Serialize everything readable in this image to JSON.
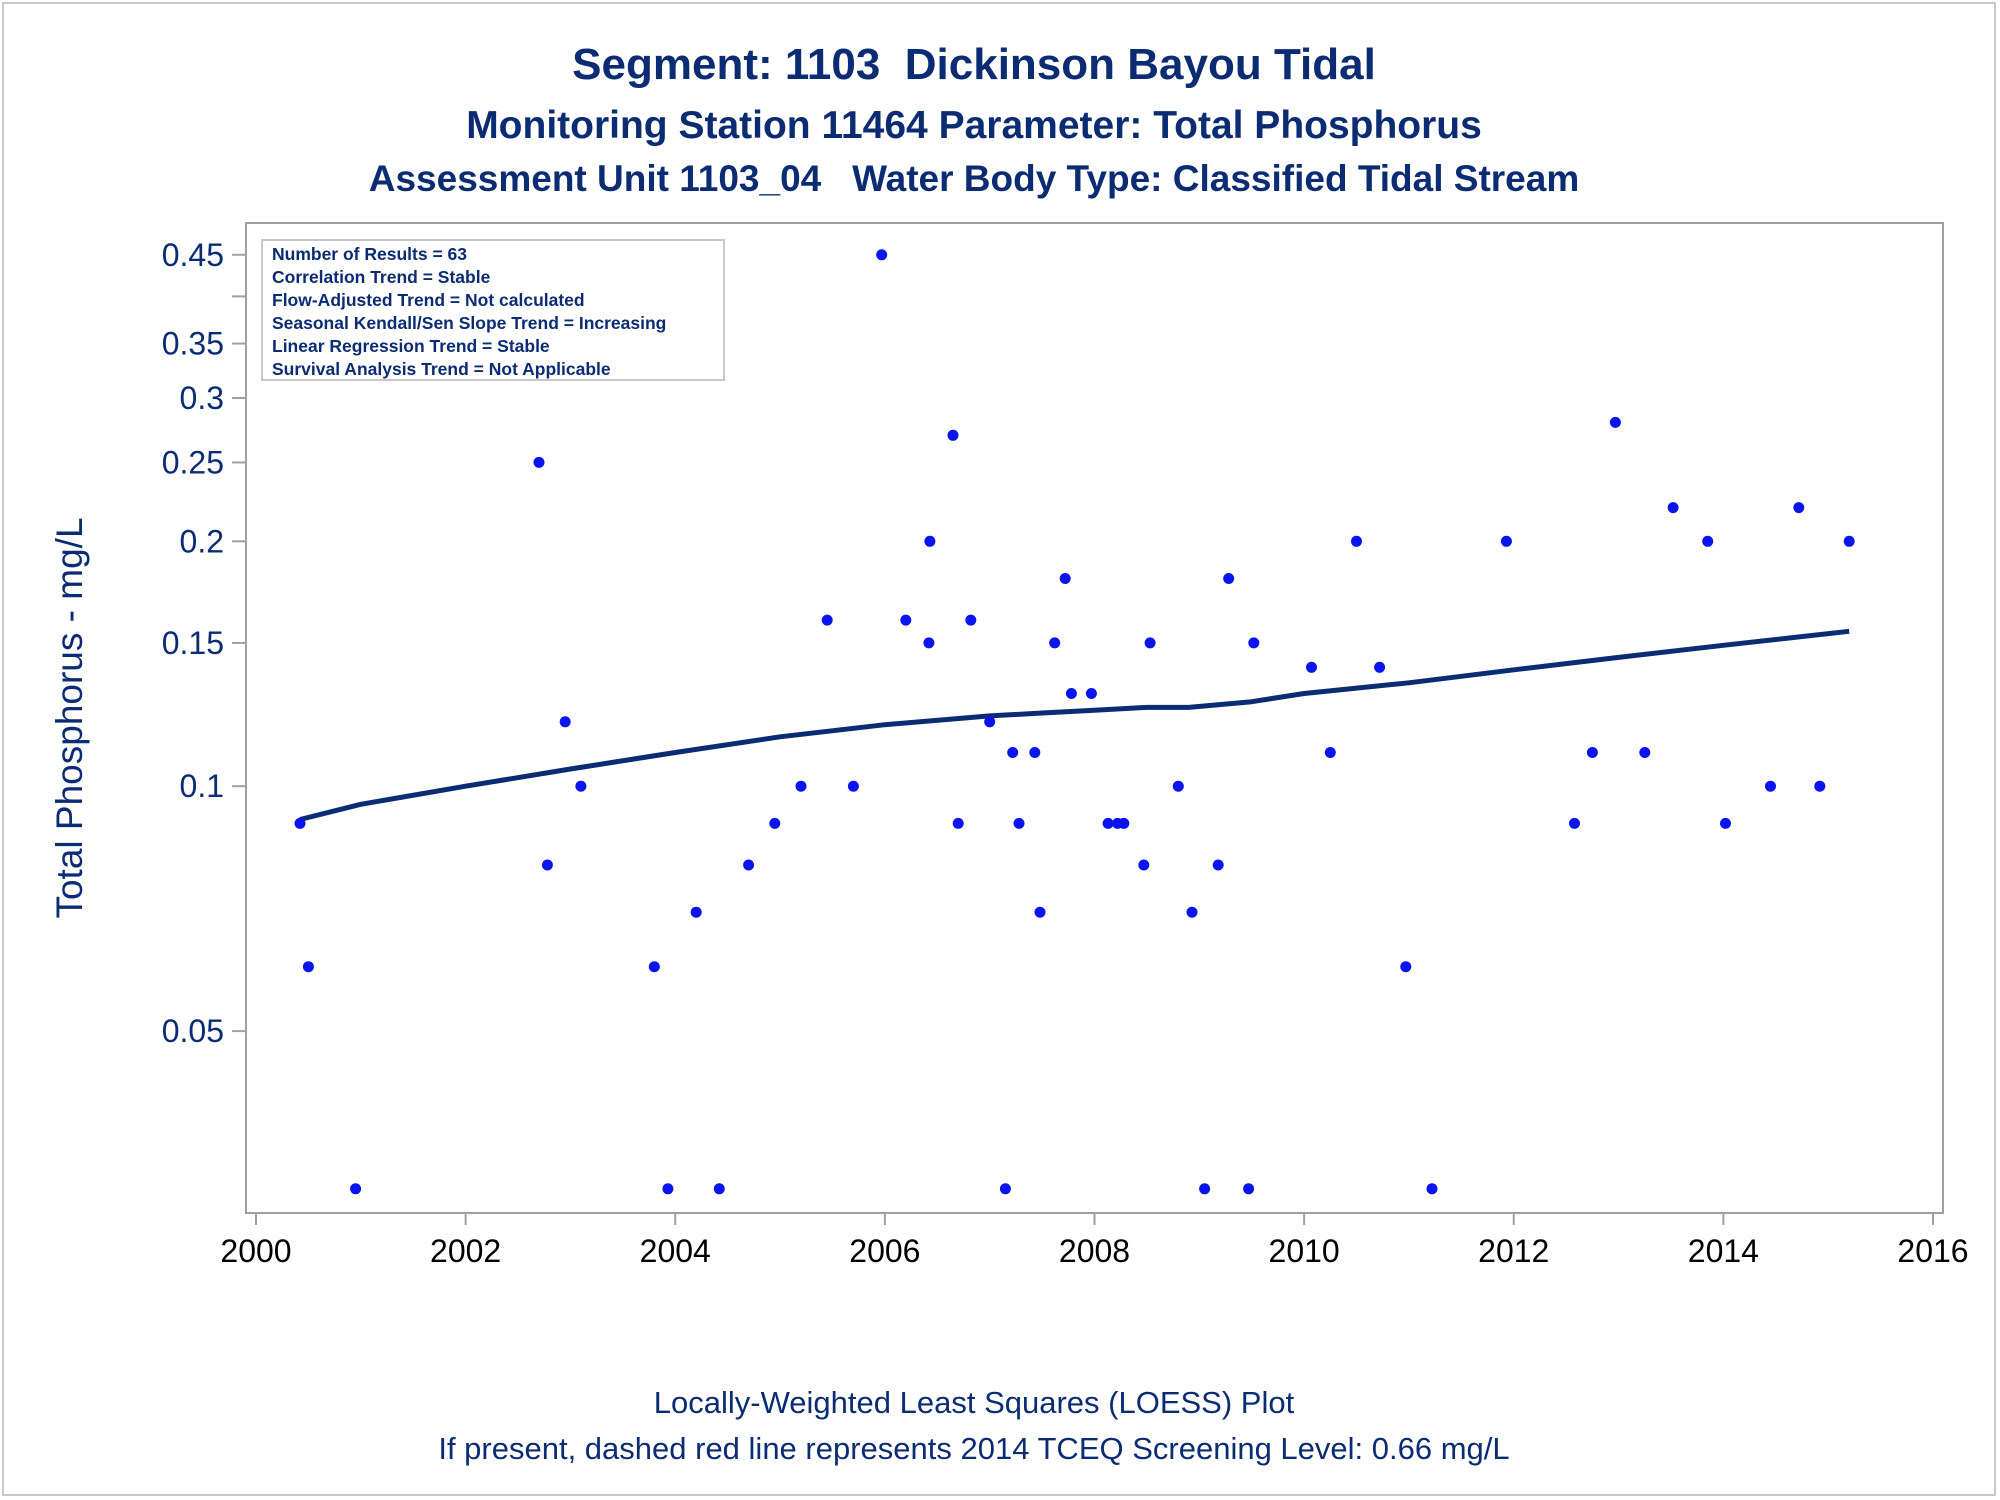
{
  "titles": [
    "Segment: 1103  Dickinson Bayou Tidal",
    "Monitoring Station 11464 Parameter: Total Phosphorus",
    "Assessment Unit 1103_04   Water Body Type: Classified Tidal Stream"
  ],
  "footnotes": [
    "Locally-Weighted Least Squares (LOESS) Plot",
    "If present, dashed red line represents 2014 TCEQ Screening Level: 0.66 mg/L"
  ],
  "stats_box": [
    "Number of Results = 63",
    "Correlation Trend = Stable",
    "Flow-Adjusted Trend = Not calculated",
    "Seasonal Kendall/Sen Slope Trend = Increasing",
    "Linear Regression Trend = Stable",
    "Survival Analysis Trend = Not Applicable"
  ],
  "colors": {
    "text": "#0b2c73",
    "points": "#0a14f0",
    "trend_line": "#0b2c73",
    "frame": "#a0a0a0"
  },
  "chart_data": {
    "type": "scatter",
    "ylabel": "Total Phosphorus - mg/L",
    "xlabel": "",
    "xlim": [
      2000,
      2016
    ],
    "ylim": [
      0.031,
      0.46
    ],
    "y_scale": "log",
    "x_ticks": [
      2000,
      2002,
      2004,
      2006,
      2008,
      2010,
      2012,
      2014,
      2016
    ],
    "y_ticks": [
      0.45,
      0.35,
      0.3,
      0.25,
      0.2,
      0.15,
      0.1,
      0.05
    ],
    "y_tick_labels": [
      "0.45",
      "0.35",
      "0.3",
      "0.25",
      "0.2",
      "0.15",
      "0.1",
      "0.05"
    ],
    "y_minor_ticks": [
      0.4
    ],
    "grid": false,
    "legend": "none",
    "points": [
      [
        2000.42,
        0.09
      ],
      [
        2000.5,
        0.06
      ],
      [
        2000.95,
        0.032
      ],
      [
        2002.7,
        0.25
      ],
      [
        2002.78,
        0.08
      ],
      [
        2002.95,
        0.12
      ],
      [
        2003.1,
        0.1
      ],
      [
        2003.8,
        0.06
      ],
      [
        2003.93,
        0.032
      ],
      [
        2004.2,
        0.07
      ],
      [
        2004.42,
        0.032
      ],
      [
        2004.7,
        0.08
      ],
      [
        2004.95,
        0.09
      ],
      [
        2005.2,
        0.1
      ],
      [
        2005.45,
        0.16
      ],
      [
        2005.7,
        0.1
      ],
      [
        2005.97,
        0.45
      ],
      [
        2006.2,
        0.16
      ],
      [
        2006.42,
        0.15
      ],
      [
        2006.43,
        0.2
      ],
      [
        2006.65,
        0.27
      ],
      [
        2006.7,
        0.09
      ],
      [
        2006.82,
        0.16
      ],
      [
        2007.0,
        0.12
      ],
      [
        2007.15,
        0.032
      ],
      [
        2007.22,
        0.11
      ],
      [
        2007.28,
        0.09
      ],
      [
        2007.43,
        0.11
      ],
      [
        2007.48,
        0.07
      ],
      [
        2007.62,
        0.15
      ],
      [
        2007.72,
        0.18
      ],
      [
        2007.78,
        0.13
      ],
      [
        2007.97,
        0.13
      ],
      [
        2008.13,
        0.09
      ],
      [
        2008.22,
        0.09
      ],
      [
        2008.28,
        0.09
      ],
      [
        2008.47,
        0.08
      ],
      [
        2008.53,
        0.15
      ],
      [
        2008.8,
        0.1
      ],
      [
        2008.93,
        0.07
      ],
      [
        2009.05,
        0.032
      ],
      [
        2009.18,
        0.08
      ],
      [
        2009.28,
        0.18
      ],
      [
        2009.47,
        0.032
      ],
      [
        2009.52,
        0.15
      ],
      [
        2010.07,
        0.14
      ],
      [
        2010.25,
        0.11
      ],
      [
        2010.5,
        0.2
      ],
      [
        2010.72,
        0.14
      ],
      [
        2010.97,
        0.06
      ],
      [
        2011.22,
        0.032
      ],
      [
        2011.93,
        0.2
      ],
      [
        2012.58,
        0.09
      ],
      [
        2012.75,
        0.11
      ],
      [
        2012.97,
        0.28
      ],
      [
        2013.25,
        0.11
      ],
      [
        2013.52,
        0.22
      ],
      [
        2013.85,
        0.2
      ],
      [
        2014.02,
        0.09
      ],
      [
        2014.45,
        0.1
      ],
      [
        2014.72,
        0.22
      ],
      [
        2014.92,
        0.1
      ],
      [
        2015.2,
        0.2
      ]
    ],
    "loess_line": [
      [
        2000.42,
        0.091
      ],
      [
        2001.0,
        0.095
      ],
      [
        2002.0,
        0.1
      ],
      [
        2003.0,
        0.105
      ],
      [
        2004.0,
        0.11
      ],
      [
        2005.0,
        0.115
      ],
      [
        2006.0,
        0.119
      ],
      [
        2007.0,
        0.122
      ],
      [
        2007.5,
        0.123
      ],
      [
        2008.0,
        0.124
      ],
      [
        2008.5,
        0.125
      ],
      [
        2008.9,
        0.125
      ],
      [
        2009.5,
        0.127
      ],
      [
        2010.0,
        0.13
      ],
      [
        2011.0,
        0.134
      ],
      [
        2012.0,
        0.139
      ],
      [
        2013.0,
        0.144
      ],
      [
        2014.0,
        0.149
      ],
      [
        2015.2,
        0.155
      ]
    ]
  }
}
